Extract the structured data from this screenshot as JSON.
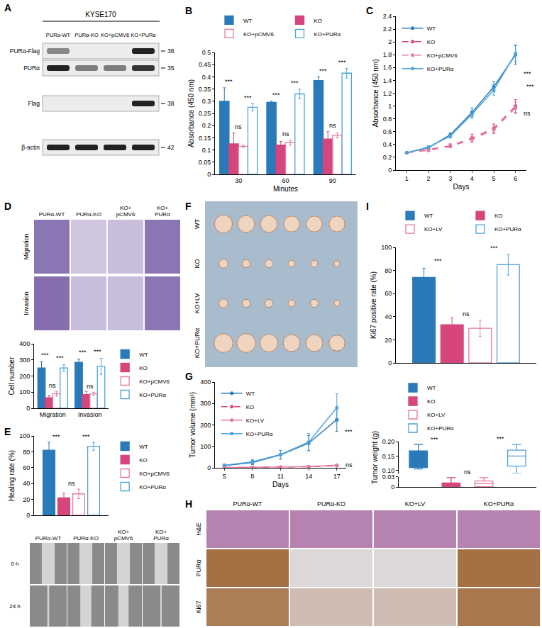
{
  "chart_data": [
    {
      "letter": "B",
      "type": "bar",
      "x_label": "Minutes",
      "y_label": "Absorbance (450 nm)",
      "categories": [
        "30",
        "60",
        "90"
      ],
      "series": [
        {
          "name": "WT",
          "color": "#2a7ab9",
          "marker": "solid",
          "values": [
            0.3,
            0.295,
            0.385
          ],
          "errors": [
            0.055,
            0.005,
            0.015
          ]
        },
        {
          "name": "KO",
          "color": "#d6457c",
          "marker": "solid",
          "values": [
            0.125,
            0.12,
            0.145
          ],
          "errors": [
            0.045,
            0.015,
            0.03
          ]
        },
        {
          "name": "KO+pCMV6",
          "color": "#e6799f",
          "marker": "open",
          "values": [
            0.115,
            0.13,
            0.16
          ],
          "errors": [
            0.005,
            0.01,
            0.01
          ]
        },
        {
          "name": "KO+PURα",
          "color": "#4ea3dc",
          "marker": "open",
          "values": [
            0.275,
            0.33,
            0.415
          ],
          "errors": [
            0.015,
            0.02,
            0.02
          ]
        }
      ],
      "ylim": [
        0,
        0.5
      ],
      "yticks": [
        0,
        0.05,
        0.1,
        0.15,
        0.2,
        0.25,
        0.3,
        0.35,
        0.4,
        0.45,
        0.5
      ],
      "grid": false,
      "legend": "top",
      "annotations": [
        {
          "text": "***",
          "category": "30",
          "pair": [
            "WT",
            "KO"
          ],
          "y": 0.36
        },
        {
          "text": "ns",
          "category": "30",
          "pair": [
            "KO",
            "KO+pCMV6"
          ],
          "y": 0.175
        },
        {
          "text": "***",
          "category": "30",
          "pair": [
            "KO+pCMV6",
            "KO+PURα"
          ],
          "y": 0.295
        },
        {
          "text": "***",
          "category": "60",
          "pair": [
            "WT",
            "KO"
          ],
          "y": 0.305
        },
        {
          "text": "ns",
          "category": "60",
          "pair": [
            "KO",
            "KO+pCMV6"
          ],
          "y": 0.145
        },
        {
          "text": "***",
          "category": "60",
          "pair": [
            "KO+pCMV6",
            "KO+PURα"
          ],
          "y": 0.355
        },
        {
          "text": "***",
          "category": "90",
          "pair": [
            "WT",
            "KO"
          ],
          "y": 0.405
        },
        {
          "text": "ns",
          "category": "90",
          "pair": [
            "KO",
            "KO+pCMV6"
          ],
          "y": 0.18
        },
        {
          "text": "***",
          "category": "90",
          "pair": [
            "KO+pCMV6",
            "KO+PURα"
          ],
          "y": 0.44
        }
      ]
    },
    {
      "letter": "C",
      "type": "line",
      "x_label": "Days",
      "y_label": "Absorbance (450 nm)",
      "x": [
        1,
        2,
        3,
        4,
        5,
        6
      ],
      "xlim": [
        0.5,
        6.5
      ],
      "xticks": [
        1,
        2,
        3,
        4,
        5,
        6
      ],
      "series": [
        {
          "name": "WT",
          "color": "#2a7ab9",
          "marker": "circle",
          "line_style": "solid",
          "values": [
            0.27,
            0.35,
            0.55,
            0.9,
            1.3,
            1.8
          ],
          "errors": [
            0.01,
            0.02,
            0.03,
            0.07,
            0.08,
            0.15
          ]
        },
        {
          "name": "KO",
          "color": "#d6457c",
          "marker": "circle",
          "line_style": "dash",
          "values": [
            0.27,
            0.32,
            0.38,
            0.5,
            0.65,
            1.0
          ],
          "errors": [
            0.01,
            0.02,
            0.03,
            0.06,
            0.07,
            0.1
          ]
        },
        {
          "name": "KO+pCMV6",
          "color": "#e6799f",
          "marker": "circle",
          "line_style": "dash",
          "values": [
            0.27,
            0.31,
            0.37,
            0.48,
            0.63,
            0.97
          ],
          "errors": [
            0.01,
            0.02,
            0.02,
            0.05,
            0.06,
            0.09
          ]
        },
        {
          "name": "KO+PURα",
          "color": "#4ea3dc",
          "marker": "circle",
          "line_style": "solid",
          "values": [
            0.27,
            0.36,
            0.53,
            0.87,
            1.25,
            1.82
          ],
          "errors": [
            0.01,
            0.02,
            0.03,
            0.06,
            0.08,
            0.12
          ]
        }
      ],
      "ylim": [
        0,
        2.4
      ],
      "yticks": [
        0,
        0.2,
        0.4,
        0.6,
        0.8,
        1,
        1.2,
        1.4,
        1.6,
        1.8,
        2,
        2.2,
        2.4
      ],
      "grid": false,
      "legend": "top-left",
      "annotations": [
        {
          "text": "***",
          "x": 6.3,
          "y": 1.5
        },
        {
          "text": "***",
          "x": 6.45,
          "y": 1.3
        },
        {
          "text": "ns",
          "x": 6.3,
          "y": 0.88
        }
      ]
    },
    {
      "type": "bar",
      "y_label": "Cell number",
      "categories": [
        "Migration",
        "Invasion"
      ],
      "series": [
        {
          "name": "WT",
          "color": "#2a7ab9",
          "marker": "solid",
          "values": [
            250,
            285
          ],
          "errors": [
            40,
            20
          ]
        },
        {
          "name": "KO",
          "color": "#d6457c",
          "marker": "solid",
          "values": [
            65,
            85
          ],
          "errors": [
            15,
            20
          ]
        },
        {
          "name": "KO+pCMV6",
          "color": "#e6799f",
          "marker": "open",
          "values": [
            90,
            90
          ],
          "errors": [
            15,
            10
          ]
        },
        {
          "name": "KO+PURα",
          "color": "#4ea3dc",
          "marker": "open",
          "values": [
            250,
            260
          ],
          "errors": [
            20,
            50
          ]
        }
      ],
      "ylim": [
        0,
        400
      ],
      "yticks": [
        0,
        100,
        200,
        300,
        400
      ],
      "grid": false,
      "legend": "right",
      "annotations": [
        {
          "text": "***",
          "category": "Migration",
          "pair": [
            "WT",
            "KO"
          ],
          "y": 300
        },
        {
          "text": "ns",
          "category": "Migration",
          "pair": [
            "KO",
            "KO+pCMV6"
          ],
          "y": 110
        },
        {
          "text": "***",
          "category": "Migration",
          "pair": [
            "KO+pCMV6",
            "KO+PURα"
          ],
          "y": 280
        },
        {
          "text": "***",
          "category": "Invasion",
          "pair": [
            "WT",
            "KO"
          ],
          "y": 315
        },
        {
          "text": "ns",
          "category": "Invasion",
          "pair": [
            "KO",
            "KO+pCMV6"
          ],
          "y": 105
        },
        {
          "text": "***",
          "category": "Invasion",
          "pair": [
            "KO+pCMV6",
            "KO+PURα"
          ],
          "y": 320
        }
      ]
    },
    {
      "letter": "E",
      "type": "bar",
      "y_label": "Healing rate (%)",
      "tick_labels": "y",
      "series": [
        {
          "name": "WT",
          "color": "#2a7ab9",
          "marker": "solid",
          "values": [
            82
          ],
          "errors": [
            10
          ]
        },
        {
          "name": "KO",
          "color": "#d6457c",
          "marker": "solid",
          "values": [
            22
          ],
          "errors": [
            6
          ]
        },
        {
          "name": "KO+pCMV6",
          "color": "#e6799f",
          "marker": "open",
          "values": [
            27
          ],
          "errors": [
            6
          ]
        },
        {
          "name": "KO+PURα",
          "color": "#4ea3dc",
          "marker": "open",
          "values": [
            87
          ],
          "errors": [
            5
          ]
        }
      ],
      "ylim": [
        0,
        100
      ],
      "yticks": [
        0,
        20,
        40,
        60,
        80,
        100
      ],
      "grid": false,
      "legend": "right",
      "annotations": [
        {
          "text": "***",
          "pair": [
            "WT",
            "KO"
          ],
          "y": 93
        },
        {
          "text": "ns",
          "pair": [
            "KO",
            "KO+pCMV6"
          ],
          "y": 34
        },
        {
          "text": "***",
          "pair": [
            "KO+pCMV6",
            "KO+PURα"
          ],
          "y": 93
        }
      ]
    },
    {
      "letter": "G",
      "type": "line",
      "x_label": "Days",
      "y_label": "Tumor volume (mm³)",
      "x": [
        5,
        8,
        11,
        14,
        17
      ],
      "xlim": [
        4,
        18
      ],
      "xticks": [
        5,
        8,
        11,
        14,
        17
      ],
      "series": [
        {
          "name": "WT",
          "color": "#2a7ab9",
          "marker": "circle",
          "line_style": "solid",
          "values": [
            10,
            25,
            60,
            115,
            225
          ],
          "errors": [
            5,
            10,
            20,
            35,
            55
          ]
        },
        {
          "name": "KO",
          "color": "#d6457c",
          "marker": "circle",
          "line_style": "dash",
          "values": [
            1,
            2,
            3,
            5,
            10
          ],
          "errors": [
            1,
            1,
            2,
            3,
            5
          ]
        },
        {
          "name": "KO+LV",
          "color": "#e6799f",
          "marker": "circle",
          "line_style": "solid",
          "values": [
            1,
            2,
            3,
            6,
            12
          ],
          "errors": [
            1,
            1,
            2,
            3,
            5
          ]
        },
        {
          "name": "KO+PURα",
          "color": "#4ea3dc",
          "marker": "circle",
          "line_style": "solid",
          "values": [
            12,
            28,
            62,
            120,
            280
          ],
          "errors": [
            5,
            10,
            20,
            40,
            65
          ]
        }
      ],
      "ylim": [
        0,
        400
      ],
      "yticks": [
        0,
        100,
        200,
        300,
        400
      ],
      "grid": false,
      "legend": "top-left",
      "annotations": [
        {
          "text": "***",
          "x": 17.7,
          "y": 170
        },
        {
          "text": "***",
          "x": 18.2,
          "y": 115
        },
        {
          "text": "ns",
          "x": 17.8,
          "y": 14
        }
      ]
    },
    {
      "letter": "I",
      "type": "bar",
      "y_label": "Ki67 positive rate (%)",
      "tick_labels": "y",
      "series": [
        {
          "name": "WT",
          "color": "#2a7ab9",
          "marker": "solid",
          "values": [
            74
          ],
          "errors": [
            8
          ]
        },
        {
          "name": "KO",
          "color": "#d6457c",
          "marker": "solid",
          "values": [
            33
          ],
          "errors": [
            6
          ]
        },
        {
          "name": "KO+LV",
          "color": "#e6799f",
          "marker": "open",
          "values": [
            30
          ],
          "errors": [
            7
          ]
        },
        {
          "name": "KO+PURα",
          "color": "#4ea3dc",
          "marker": "open",
          "values": [
            85
          ],
          "errors": [
            9
          ]
        }
      ],
      "ylim": [
        0,
        100
      ],
      "yticks": [
        0,
        20,
        40,
        60,
        80,
        100
      ],
      "grid": false,
      "legend": "top",
      "annotations": [
        {
          "text": "***",
          "pair": [
            "WT",
            "KO"
          ],
          "y": 84
        },
        {
          "text": "ns",
          "pair": [
            "KO",
            "KO+LV"
          ],
          "y": 38
        },
        {
          "text": "***",
          "pair": [
            "KO+LV",
            "KO+PURα"
          ],
          "y": 95
        }
      ]
    },
    {
      "type": "box",
      "y_label": "Tumor weight (g)",
      "tick_labels": "y",
      "series": [
        {
          "name": "WT",
          "color": "#2a7ab9",
          "marker": "solid",
          "lowerfence": 0.105,
          "q1": 0.11,
          "median": 0.165,
          "q3": 0.168,
          "upperfence": 0.19
        },
        {
          "name": "KO",
          "color": "#d6457c",
          "marker": "solid",
          "lowerfence": 0,
          "q1": 0,
          "median": 0.01,
          "q3": 0.012,
          "upperfence": 0.028
        },
        {
          "name": "KO+LV",
          "color": "#e6799f",
          "marker": "open",
          "lowerfence": 0,
          "q1": 0.001,
          "median": 0.01,
          "q3": 0.018,
          "upperfence": 0.028
        },
        {
          "name": "KO+PURα",
          "color": "#4ea3dc",
          "marker": "open",
          "lowerfence": 0.09,
          "q1": 0.115,
          "median": 0.15,
          "q3": 0.17,
          "upperfence": 0.19
        }
      ],
      "ylim": [
        0,
        0.03
      ],
      "yticks": [
        0,
        0.03
      ],
      "y2lim": [
        0.09,
        0.2
      ],
      "y2ticks": [
        {
          "value": 0.1,
          "label": "0.10"
        },
        0.15,
        {
          "value": 0.2,
          "label": "0.20"
        }
      ],
      "grid": false,
      "legend": "top",
      "annotations": [
        {
          "text": "***",
          "pair": [
            "WT",
            "KO"
          ],
          "y": 0.19,
          "axis": "y2"
        },
        {
          "text": "ns",
          "pair": [
            "KO",
            "KO+LV"
          ],
          "y": 0.03,
          "axis": "y"
        },
        {
          "text": "***",
          "pair": [
            "KO+LV",
            "KO+PURα"
          ],
          "y": 0.192,
          "axis": "y2"
        }
      ]
    }
  ],
  "image_panels": [
    {
      "letter": "A",
      "type": "western_blot",
      "title": "KYSE170",
      "lanes": [
        "PURα-WT",
        "PURα-KO",
        "KO+pCMV6",
        "KO+PURα"
      ],
      "rows": [
        {
          "label": "PURα-Flag",
          "size": 38,
          "bands": [
            0.5,
            0,
            0,
            1
          ]
        },
        {
          "label": "PURα",
          "size": 35,
          "bands": [
            1,
            0.55,
            0.55,
            0.9
          ]
        },
        {
          "label": "Flag",
          "size": 38,
          "bands": [
            0,
            0,
            0,
            1
          ]
        },
        {
          "label": "β-actin",
          "size": 42,
          "bands": [
            1,
            1,
            1,
            1
          ]
        }
      ]
    },
    {
      "letter": "D",
      "type": "micrographs",
      "columns": [
        "PURα-WT",
        "PURα-KO",
        "KO+\npCMV6",
        "KO+\nPURα"
      ],
      "rows": [
        "Migration",
        "Invasion"
      ],
      "coverage": [
        [
          0.75,
          0.25,
          0.3,
          0.75
        ],
        [
          0.8,
          0.3,
          0.3,
          0.75
        ]
      ]
    },
    {
      "type": "scratch_assay",
      "columns": [
        "PURα-WT",
        "PURα-KO",
        "KO+\npCMV6",
        "KO+\nPURα"
      ],
      "rows": [
        "0 h",
        "24 h"
      ],
      "gap": [
        [
          0.35,
          0.35,
          0.35,
          0.35
        ],
        [
          0.05,
          0.3,
          0.28,
          0.04
        ]
      ]
    },
    {
      "letter": "F",
      "type": "tumor_photo",
      "rows": [
        "WT",
        "KO",
        "KO+LV",
        "KO+PURα"
      ],
      "tumors": [
        [
          0.9,
          0.85,
          0.85,
          0.8,
          0.8,
          0.8
        ],
        [
          0.45,
          0.4,
          0.4,
          0.35,
          0.35,
          0.3
        ],
        [
          0.45,
          0.4,
          0.4,
          0.35,
          0.4,
          0.3
        ],
        [
          0.95,
          0.95,
          0.9,
          0.85,
          0.85,
          0.8
        ]
      ]
    },
    {
      "letter": "H",
      "type": "histology",
      "columns": [
        "PURα-WT",
        "PURα-KO",
        "KO+LV",
        "KO+PURα"
      ],
      "rows": [
        "H&E",
        "PURα",
        "Ki67"
      ],
      "colors": [
        "#7b4a8f",
        "#9a5b25",
        "#9a5b25"
      ],
      "staining": [
        [
          0.45,
          0.45,
          0.45,
          0.45
        ],
        [
          0.85,
          0.1,
          0.1,
          0.85
        ],
        [
          0.75,
          0.3,
          0.3,
          0.8
        ]
      ]
    }
  ]
}
